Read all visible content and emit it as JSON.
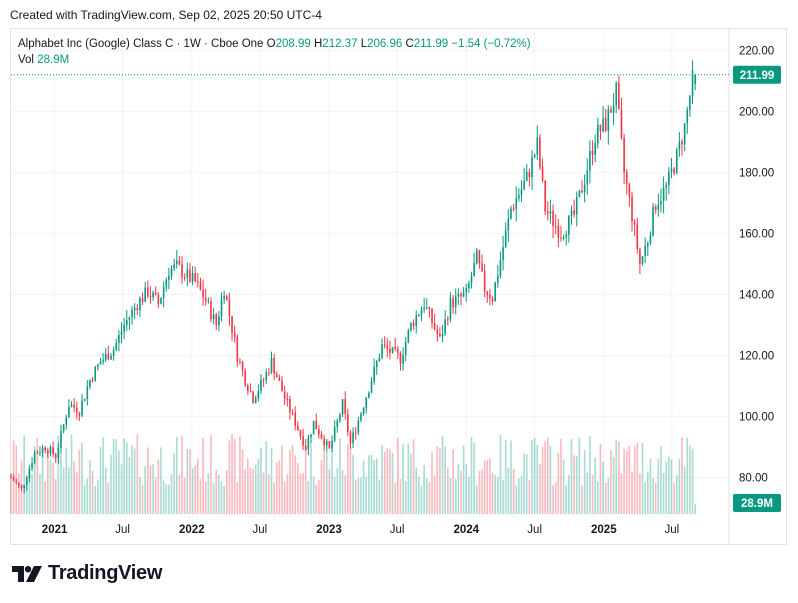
{
  "header": {
    "created_text": "Created with TradingView.com, Sep 02, 2025 20:50 UTC-4"
  },
  "legend": {
    "symbol": "Alphabet Inc (Google) Class C · 1W · Cboe One",
    "open_label": "O",
    "open_value": "208.99",
    "high_label": "H",
    "high_value": "212.37",
    "low_label": "L",
    "low_value": "206.96",
    "close_label": "C",
    "close_value": "211.99",
    "change_value": "−1.54 (−0.72%)",
    "vol_label": "Vol",
    "vol_value": "28.9M"
  },
  "footer": {
    "brand": "TradingView"
  },
  "colors": {
    "up": "#089981",
    "down": "#f23645",
    "grid": "#f0f3fa",
    "axis_text": "#131722",
    "frame": "#e0e3eb"
  },
  "chart_data": {
    "type": "candlestick",
    "title": "Alphabet Inc (Google) Class C · 1W · Cboe One",
    "interval": "1W",
    "y_ticks": [
      80,
      100,
      120,
      140,
      160,
      180,
      200,
      220
    ],
    "y_tick_labels": [
      "80.00",
      "100.00",
      "120.00",
      "140.00",
      "160.00",
      "180.00",
      "200.00",
      "220.00"
    ],
    "ylim": [
      68,
      227
    ],
    "x_ticks": [
      {
        "date": "2021-01-01",
        "label": "2021"
      },
      {
        "date": "2021-07-01",
        "label": "Jul"
      },
      {
        "date": "2022-01-01",
        "label": "2022"
      },
      {
        "date": "2022-07-01",
        "label": "Jul"
      },
      {
        "date": "2023-01-01",
        "label": "2023"
      },
      {
        "date": "2023-07-01",
        "label": "Jul"
      },
      {
        "date": "2024-01-01",
        "label": "2024"
      },
      {
        "date": "2024-07-01",
        "label": "Jul"
      },
      {
        "date": "2025-01-01",
        "label": "2025"
      },
      {
        "date": "2025-07-01",
        "label": "Jul"
      }
    ],
    "x_range": [
      "2020-09-07",
      "2025-11-30"
    ],
    "last_price": 211.99,
    "last_price_label": "211.99",
    "last_volume_label": "28.9M",
    "grid": true,
    "legend_position": "top-left",
    "price_anchors": [
      [
        "2020-09-07",
        80
      ],
      [
        "2020-10-05",
        76
      ],
      [
        "2020-11-09",
        88
      ],
      [
        "2020-12-07",
        90
      ],
      [
        "2021-01-04",
        87
      ],
      [
        "2021-02-08",
        104
      ],
      [
        "2021-03-08",
        102
      ],
      [
        "2021-04-05",
        112
      ],
      [
        "2021-05-03",
        118
      ],
      [
        "2021-06-07",
        122
      ],
      [
        "2021-07-05",
        130
      ],
      [
        "2021-08-09",
        137
      ],
      [
        "2021-09-06",
        141
      ],
      [
        "2021-10-04",
        137
      ],
      [
        "2021-11-01",
        148
      ],
      [
        "2021-11-22",
        149
      ],
      [
        "2021-12-20",
        146
      ],
      [
        "2022-01-10",
        144
      ],
      [
        "2022-02-07",
        138
      ],
      [
        "2022-03-07",
        130
      ],
      [
        "2022-03-28",
        142
      ],
      [
        "2022-05-02",
        120
      ],
      [
        "2022-05-23",
        112
      ],
      [
        "2022-06-13",
        106
      ],
      [
        "2022-07-11",
        112
      ],
      [
        "2022-08-01",
        118
      ],
      [
        "2022-09-05",
        106
      ],
      [
        "2022-10-03",
        98
      ],
      [
        "2022-10-31",
        90
      ],
      [
        "2022-11-21",
        98
      ],
      [
        "2023-01-02",
        89
      ],
      [
        "2023-02-06",
        104
      ],
      [
        "2023-02-27",
        91
      ],
      [
        "2023-04-03",
        104
      ],
      [
        "2023-05-22",
        123
      ],
      [
        "2023-07-10",
        119
      ],
      [
        "2023-08-07",
        130
      ],
      [
        "2023-09-11",
        137
      ],
      [
        "2023-10-23",
        125
      ],
      [
        "2023-11-20",
        137
      ],
      [
        "2024-01-01",
        140
      ],
      [
        "2024-01-29",
        152
      ],
      [
        "2024-02-19",
        142
      ],
      [
        "2024-03-11",
        139
      ],
      [
        "2024-04-29",
        168
      ],
      [
        "2024-06-10",
        178
      ],
      [
        "2024-07-08",
        189
      ],
      [
        "2024-07-29",
        168
      ],
      [
        "2024-09-09",
        160
      ],
      [
        "2024-10-14",
        166
      ],
      [
        "2024-11-11",
        178
      ],
      [
        "2024-12-09",
        192
      ],
      [
        "2025-01-06",
        196
      ],
      [
        "2025-02-03",
        206
      ],
      [
        "2025-02-24",
        180
      ],
      [
        "2025-03-17",
        166
      ],
      [
        "2025-04-07",
        150
      ],
      [
        "2025-04-28",
        158
      ],
      [
        "2025-05-19",
        170
      ],
      [
        "2025-06-16",
        175
      ],
      [
        "2025-07-14",
        185
      ],
      [
        "2025-08-04",
        195
      ],
      [
        "2025-08-25",
        210
      ],
      [
        "2025-09-01",
        211.99
      ]
    ],
    "last_bar": {
      "open": 208.99,
      "high": 212.37,
      "low": 206.96,
      "close": 211.99
    }
  }
}
